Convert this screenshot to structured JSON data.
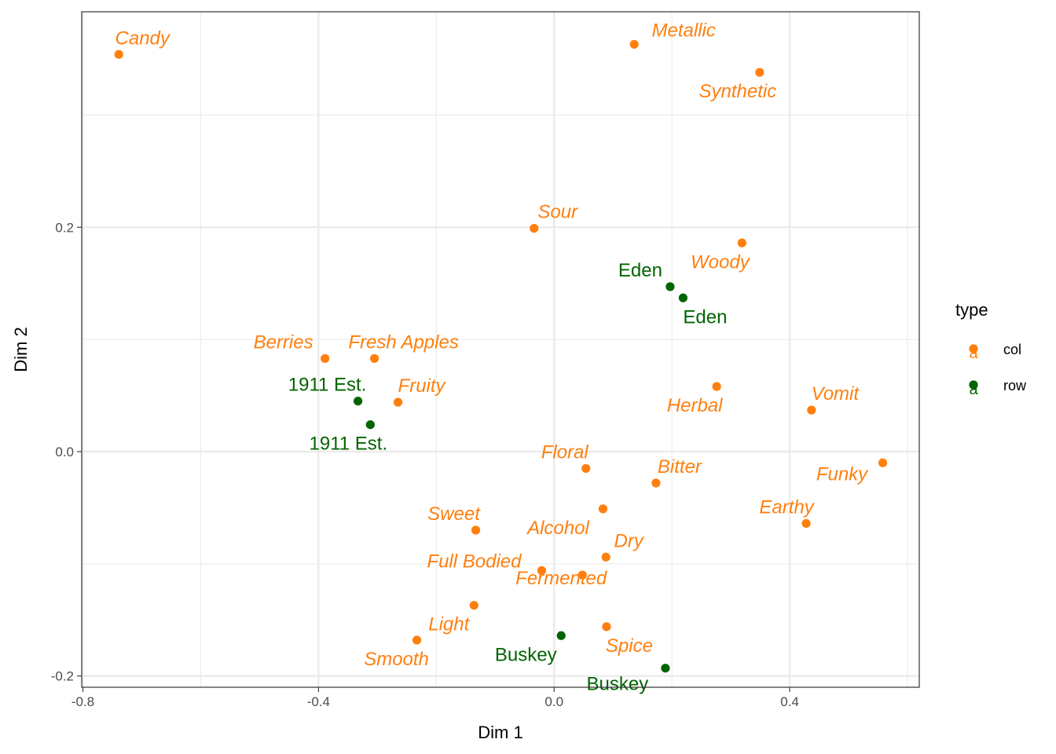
{
  "chart_data": {
    "type": "scatter",
    "xlabel": "Dim 1",
    "ylabel": "Dim 2",
    "xlim": [
      -0.802,
      0.62
    ],
    "ylim": [
      -0.21,
      0.392
    ],
    "x_ticks": [
      -0.8,
      -0.4,
      0.0,
      0.4
    ],
    "x_tick_labels": [
      "-0.8",
      "-0.4",
      "0.0",
      "0.4"
    ],
    "x_minor_ticks": [
      -0.6,
      -0.2,
      0.2,
      0.6
    ],
    "y_ticks": [
      -0.2,
      0.0,
      0.2
    ],
    "y_tick_labels": [
      "-0.2",
      "0.0",
      "0.2"
    ],
    "y_minor_ticks": [
      -0.1,
      0.1,
      0.3
    ],
    "grid": true,
    "colors": {
      "col": "#ff7f0e",
      "row": "#006400"
    },
    "legend": {
      "title": "type",
      "position": "right",
      "entries": [
        {
          "label": "col",
          "key": "a",
          "color": "#ff7f0e"
        },
        {
          "label": "row",
          "key": "a",
          "color": "#006400"
        }
      ]
    },
    "series": [
      {
        "name": "col",
        "color": "#ff7f0e",
        "italic": true,
        "points": [
          {
            "label": "Candy",
            "x": -0.739,
            "y": 0.354
          },
          {
            "label": "Metallic",
            "x": 0.136,
            "y": 0.363
          },
          {
            "label": "Synthetic",
            "x": 0.349,
            "y": 0.338
          },
          {
            "label": "Sour",
            "x": -0.034,
            "y": 0.199
          },
          {
            "label": "Woody",
            "x": 0.319,
            "y": 0.186
          },
          {
            "label": "Berries",
            "x": -0.389,
            "y": 0.083
          },
          {
            "label": "Fresh Apples",
            "x": -0.305,
            "y": 0.083
          },
          {
            "label": "Fruity",
            "x": -0.265,
            "y": 0.044
          },
          {
            "label": "Herbal",
            "x": 0.276,
            "y": 0.058
          },
          {
            "label": "Vomit",
            "x": 0.437,
            "y": 0.037
          },
          {
            "label": "Floral",
            "x": 0.054,
            "y": -0.015
          },
          {
            "label": "Bitter",
            "x": 0.173,
            "y": -0.028
          },
          {
            "label": "Funky",
            "x": 0.558,
            "y": -0.01
          },
          {
            "label": "Earthy",
            "x": 0.428,
            "y": -0.064
          },
          {
            "label": "Alcohol",
            "x": 0.083,
            "y": -0.051
          },
          {
            "label": "Sweet",
            "x": -0.133,
            "y": -0.07
          },
          {
            "label": "Dry",
            "x": 0.088,
            "y": -0.094
          },
          {
            "label": "Full Bodied",
            "x": -0.021,
            "y": -0.106
          },
          {
            "label": "Fermented",
            "x": 0.048,
            "y": -0.11
          },
          {
            "label": "Light",
            "x": -0.136,
            "y": -0.137
          },
          {
            "label": "Spice",
            "x": 0.089,
            "y": -0.156
          },
          {
            "label": "Smooth",
            "x": -0.233,
            "y": -0.168
          }
        ]
      },
      {
        "name": "row",
        "color": "#006400",
        "italic": false,
        "points": [
          {
            "label": "Eden",
            "x": 0.197,
            "y": 0.147
          },
          {
            "label": "Eden",
            "x": 0.219,
            "y": 0.137
          },
          {
            "label": "1911 Est.",
            "x": -0.333,
            "y": 0.045
          },
          {
            "label": "1911 Est.",
            "x": -0.312,
            "y": 0.024
          },
          {
            "label": "Buskey",
            "x": 0.012,
            "y": -0.164
          },
          {
            "label": "Buskey",
            "x": 0.189,
            "y": -0.193
          }
        ]
      }
    ]
  }
}
